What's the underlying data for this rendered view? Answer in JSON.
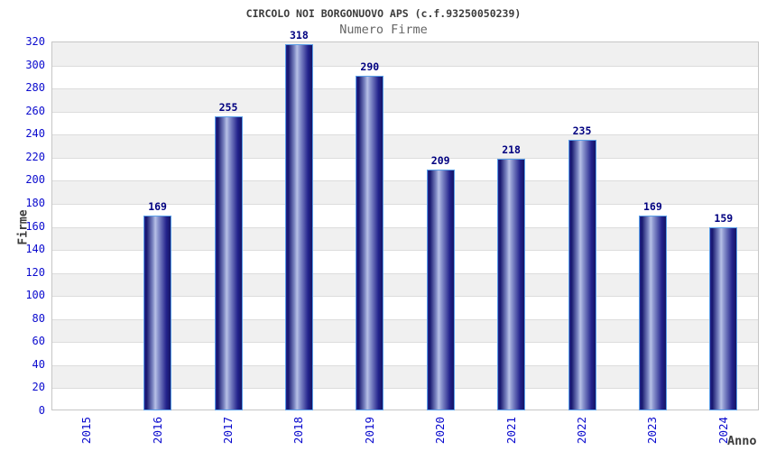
{
  "chart_data": {
    "type": "bar",
    "title": "CIRCOLO NOI BORGONUOVO APS (c.f.93250050239)",
    "subtitle": "Numero Firme",
    "xlabel": "Anno",
    "ylabel": "Firme",
    "categories": [
      "2015",
      "2016",
      "2017",
      "2018",
      "2019",
      "2020",
      "2021",
      "2022",
      "2023",
      "2024"
    ],
    "values": [
      null,
      169,
      255,
      318,
      290,
      209,
      218,
      235,
      169,
      159
    ],
    "ylim": [
      0,
      320
    ],
    "ytick_step": 20,
    "grid": "alternating-horizontal-bands",
    "legend": "none",
    "colors": {
      "tick_label": "#0a0ace",
      "value_label": "#000080",
      "title": "#3c3c3c",
      "subtitle": "#666666",
      "bar_dark": "#1a1a80",
      "bar_light": "#b7c0e6",
      "bar_border": "#5a9fe8",
      "band_gray": "#f0f0f0",
      "band_white": "#ffffff",
      "plot_border": "#c6c6c6",
      "gridline": "#dcdcdc"
    }
  }
}
